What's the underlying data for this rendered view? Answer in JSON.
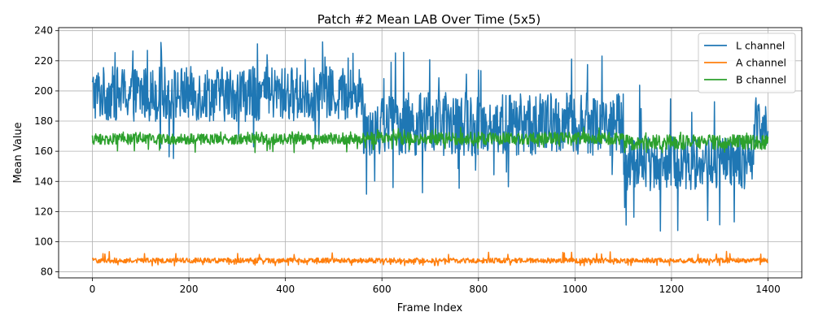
{
  "chart_data": {
    "type": "line",
    "title": "Patch #2 Mean LAB Over Time (5x5)",
    "xlabel": "Frame Index",
    "ylabel": "Mean Value",
    "xlim": [
      -70,
      1470
    ],
    "ylim": [
      76,
      242
    ],
    "xticks": [
      0,
      200,
      400,
      600,
      800,
      1000,
      1200,
      1400
    ],
    "yticks": [
      80,
      100,
      120,
      140,
      160,
      180,
      200,
      220,
      240
    ],
    "grid": true,
    "legend_position": "top-right",
    "num_frames": 1400,
    "series": [
      {
        "name": "L channel",
        "color": "#1f77b4",
        "segments": [
          {
            "from": 0,
            "to": 560,
            "mean": 198,
            "amplitude": 13,
            "spike_low": 155,
            "spike_high": 233
          },
          {
            "from": 560,
            "to": 1100,
            "mean": 178,
            "amplitude": 15,
            "spike_low": 130,
            "spike_high": 226
          },
          {
            "from": 1100,
            "to": 1370,
            "mean": 152,
            "amplitude": 13,
            "spike_low": 107,
            "spike_high": 208
          },
          {
            "from": 1370,
            "to": 1400,
            "mean": 180,
            "amplitude": 12,
            "spike_low": 145,
            "spike_high": 210
          }
        ]
      },
      {
        "name": "A channel",
        "color": "#ff7f0e",
        "segments": [
          {
            "from": 0,
            "to": 1400,
            "mean": 87.5,
            "amplitude": 1.2,
            "spike_low": 84,
            "spike_high": 94
          }
        ]
      },
      {
        "name": "B channel",
        "color": "#2ca02c",
        "segments": [
          {
            "from": 0,
            "to": 560,
            "mean": 168,
            "amplitude": 2.5,
            "spike_low": 159,
            "spike_high": 173
          },
          {
            "from": 560,
            "to": 1100,
            "mean": 168.5,
            "amplitude": 3,
            "spike_low": 161,
            "spike_high": 176
          },
          {
            "from": 1100,
            "to": 1400,
            "mean": 166,
            "amplitude": 3.5,
            "spike_low": 159,
            "spike_high": 173
          }
        ]
      }
    ]
  }
}
